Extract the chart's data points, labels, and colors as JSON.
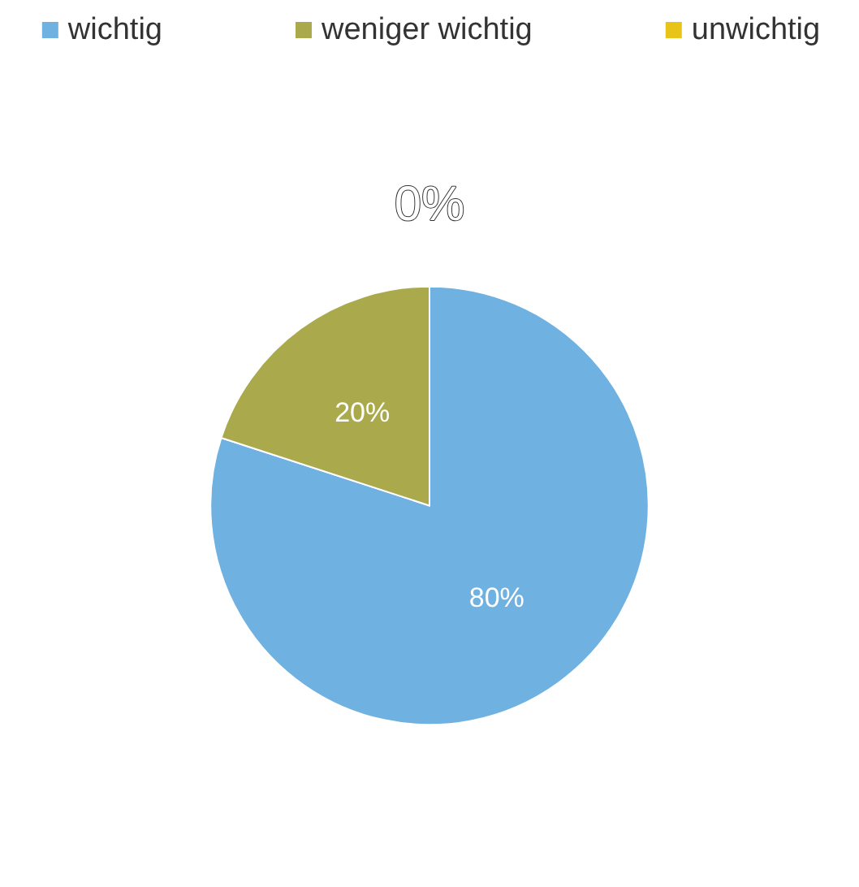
{
  "chart_data": {
    "type": "pie",
    "categories": [
      "wichtig",
      "weniger wichtig",
      "unwichtig"
    ],
    "values": [
      80,
      20,
      0
    ],
    "colors": [
      "#6fb1e1",
      "#aaaa4c",
      "#e8c418"
    ],
    "value_labels": [
      "80%",
      "20%",
      "0%"
    ],
    "legend": "top"
  }
}
